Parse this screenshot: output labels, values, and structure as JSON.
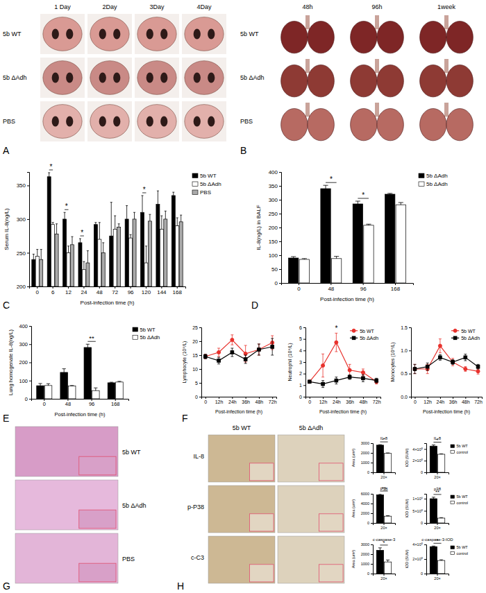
{
  "panel_labels": [
    "A",
    "B",
    "C",
    "D",
    "E",
    "F",
    "G",
    "H"
  ],
  "photo_panels": {
    "A": {
      "columns": [
        "1 Day",
        "2Day",
        "3Day",
        "4Day"
      ],
      "rows": [
        "5b WT",
        "5b ΔAdh",
        "PBS"
      ]
    },
    "B": {
      "columns": [
        "48h",
        "96h",
        "1week"
      ],
      "rows": [
        "5b WT",
        "5b ΔAdh",
        "PBS"
      ]
    },
    "G": {
      "rows": [
        "5b WT",
        "5b ΔAdh",
        "PBS"
      ]
    },
    "H": {
      "columns": [
        "5b WT",
        "5b ΔAdh"
      ],
      "rows": [
        "IL-8",
        "p-P38",
        "c-C3"
      ]
    }
  },
  "chart_data": [
    {
      "type": "bar",
      "y_label": "Serum IL-8(ng/L)",
      "x_label": "Post-infection time (h)",
      "categories": [
        "0",
        "6",
        "12",
        "24",
        "48",
        "72",
        "96",
        "120",
        "144",
        "168"
      ],
      "series": [
        {
          "name": "5b WT",
          "color": "#000000",
          "values": [
            240,
            363,
            300,
            265,
            292,
            275,
            300,
            310,
            322,
            335
          ],
          "errors": [
            8,
            6,
            10,
            6,
            3,
            50,
            20,
            25,
            20,
            5
          ]
        },
        {
          "name": "5b ΔAdh",
          "color": "#ffffff",
          "values": [
            245,
            292,
            250,
            225,
            270,
            285,
            272,
            235,
            285,
            290
          ],
          "errors": [
            10,
            3,
            10,
            12,
            25,
            20,
            5,
            25,
            20,
            12
          ]
        },
        {
          "name": "PBS",
          "color": "#aaaaaa",
          "values": [
            240,
            278,
            262,
            235,
            250,
            288,
            300,
            297,
            300,
            296
          ],
          "errors": [
            15,
            15,
            12,
            18,
            15,
            5,
            10,
            10,
            12,
            10
          ]
        }
      ],
      "ylim": [
        200,
        370
      ],
      "yticks": [
        200,
        250,
        300,
        350
      ],
      "legend": "right",
      "annotations": [
        {
          "text": "*",
          "category": 1
        },
        {
          "text": "*",
          "category": 2
        },
        {
          "text": "*",
          "category": 3
        },
        {
          "text": "*",
          "category": 7
        }
      ]
    },
    {
      "type": "bar",
      "y_label": "IL-8(ng/L) in BALF",
      "x_label": "Post-infection time (h)",
      "categories": [
        "0",
        "48",
        "96",
        "168"
      ],
      "series": [
        {
          "name": "5b ΔAdh",
          "color": "#000000",
          "values": [
            90,
            340,
            285,
            320
          ],
          "errors": [
            5,
            12,
            10,
            3
          ]
        },
        {
          "name": "5b ΔAdh",
          "color": "#ffffff",
          "values": [
            85,
            88,
            208,
            282
          ],
          "errors": [
            3,
            8,
            4,
            8
          ]
        }
      ],
      "ylim": [
        0,
        400
      ],
      "yticks": [
        0,
        50,
        100,
        150,
        200,
        250,
        300,
        350,
        400
      ],
      "legend": "right",
      "annotations": [
        {
          "text": "*",
          "category": 1
        },
        {
          "text": "*",
          "category": 2
        }
      ]
    },
    {
      "type": "bar",
      "y_label": "Lung homogenate IL-8(ng/L)",
      "x_label": "Post-infection time (h)",
      "categories": [
        "0",
        "48",
        "96",
        "168"
      ],
      "series": [
        {
          "name": "5b WT",
          "color": "#000000",
          "values": [
            72,
            145,
            282,
            88
          ],
          "errors": [
            12,
            20,
            18,
            3
          ]
        },
        {
          "name": "5b ΔAdh",
          "color": "#ffffff",
          "values": [
            73,
            70,
            45,
            92
          ],
          "errors": [
            10,
            3,
            15,
            4
          ]
        }
      ],
      "ylim": [
        0,
        400
      ],
      "yticks": [
        0,
        100,
        200,
        300,
        400
      ],
      "legend": "right",
      "annotations": [
        {
          "text": "**",
          "category": 2
        }
      ]
    },
    {
      "type": "line",
      "y_label": "Lymphocyte (10⁹/L)",
      "x_label": "Post-infection time (h)",
      "categories": [
        "0",
        "12h",
        "24h",
        "36h",
        "48h",
        "72h"
      ],
      "series": [
        {
          "color": "#e8322d",
          "marker": "circle",
          "values": [
            14.5,
            16,
            20.5,
            15.5,
            17,
            19.5
          ],
          "errors": [
            0.8,
            1.5,
            1.8,
            3,
            2,
            2.5
          ]
        },
        {
          "color": "#000000",
          "marker": "square",
          "values": [
            14.5,
            13,
            16,
            13.5,
            17,
            18
          ],
          "errors": [
            0.8,
            1.2,
            1.5,
            1.5,
            2,
            3
          ]
        }
      ],
      "ylim": [
        0,
        25
      ],
      "yticks": [
        0,
        5,
        10,
        15,
        20,
        25
      ]
    },
    {
      "type": "line",
      "y_label": "Neutrophil (10⁹/L)",
      "x_label": "Post-infection time (h)",
      "categories": [
        "0",
        "12h",
        "24h",
        "36h",
        "48h",
        "72h"
      ],
      "series": [
        {
          "name": "5b WT",
          "color": "#e8322d",
          "marker": "circle",
          "values": [
            1.3,
            2.7,
            4.7,
            2.3,
            2.1,
            1.3
          ],
          "errors": [
            0.1,
            1,
            0.8,
            0.5,
            0.3,
            0.2
          ]
        },
        {
          "name": "5b ΔAdh",
          "color": "#000000",
          "marker": "square",
          "values": [
            1.3,
            1.1,
            1.4,
            1.7,
            1.6,
            1.4
          ],
          "errors": [
            0.1,
            0.3,
            0.3,
            0.2,
            0.3,
            0.2
          ]
        }
      ],
      "ylim": [
        0,
        6
      ],
      "yticks": [
        0,
        1,
        2,
        3,
        4,
        5,
        6
      ],
      "legend": "upper right",
      "annotations": [
        {
          "text": "*",
          "category": 2
        }
      ]
    },
    {
      "type": "line",
      "y_label": "Monocytes (10⁹/L)",
      "x_label": "Post-infection time (h)",
      "categories": [
        "0",
        "12h",
        "24h",
        "36h",
        "48h",
        "72h"
      ],
      "series": [
        {
          "name": "5b WT",
          "color": "#e8322d",
          "marker": "circle",
          "values": [
            0.6,
            0.6,
            1.1,
            0.75,
            0.6,
            0.55
          ],
          "errors": [
            0.1,
            0.1,
            0.15,
            0.08,
            0.05,
            0.06
          ]
        },
        {
          "name": "5b ΔAdh",
          "color": "#000000",
          "marker": "square",
          "values": [
            0.6,
            0.65,
            0.85,
            0.75,
            0.85,
            0.65
          ],
          "errors": [
            0.1,
            0.08,
            0.06,
            0.05,
            0.07,
            0.05
          ]
        }
      ],
      "ylim": [
        0,
        1.5
      ],
      "yticks": [
        {
          "value": 0,
          "label": "0.0"
        },
        0.5,
        {
          "value": 1,
          "label": "1.0"
        },
        1.5
      ],
      "legend": "upper right"
    },
    {
      "type": "bar",
      "title": "IL-8",
      "y_label": "Area (um²)",
      "categories": [
        "20×"
      ],
      "series": [
        {
          "color": "#000000",
          "values": [
            2800
          ],
          "errors": [
            50
          ]
        },
        {
          "color": "#ffffff",
          "values": [
            1950
          ],
          "errors": [
            50
          ]
        }
      ],
      "ylim": [
        0,
        3000
      ],
      "yticks": [
        0,
        1000,
        2000,
        3000
      ],
      "annotations": [
        {
          "text": "*",
          "category": 0
        }
      ]
    },
    {
      "type": "bar",
      "title": "IL-8",
      "y_label": "IOD (SUM)",
      "categories": [
        "20×"
      ],
      "series": [
        {
          "name": "5b WT",
          "color": "#000000",
          "values": [
            450000
          ],
          "errors": [
            20000
          ]
        },
        {
          "name": "control",
          "color": "#ffffff",
          "values": [
            310000
          ],
          "errors": [
            8000
          ]
        }
      ],
      "ylim": [
        0,
        500000
      ],
      "yticks": [
        0,
        {
          "value": 200000,
          "label": "2×10⁵"
        },
        {
          "value": 400000,
          "label": "4×10⁵"
        }
      ],
      "legend": "right",
      "annotations": [
        {
          "text": "*",
          "category": 0
        }
      ]
    },
    {
      "type": "bar",
      "title": "P38",
      "y_label": "Area (um²)",
      "categories": [
        "20×"
      ],
      "series": [
        {
          "color": "#000000",
          "values": [
            5800
          ],
          "errors": [
            200
          ]
        },
        {
          "color": "#ffffff",
          "values": [
            1400
          ],
          "errors": [
            100
          ]
        }
      ],
      "ylim": [
        0,
        6000
      ],
      "yticks": [
        0,
        2000,
        4000,
        6000
      ],
      "annotations": [
        {
          "text": "**",
          "category": 0
        }
      ]
    },
    {
      "type": "bar",
      "title": "p38",
      "y_label": "IOD (SUM)",
      "categories": [
        "20×"
      ],
      "series": [
        {
          "name": "5b WT",
          "color": "#000000",
          "values": [
            1000000
          ],
          "errors": [
            60000
          ]
        },
        {
          "name": "control",
          "color": "#ffffff",
          "values": [
            200000
          ],
          "errors": [
            20000
          ]
        }
      ],
      "ylim": [
        0,
        1200000
      ],
      "yticks": [
        0,
        {
          "value": 500000,
          "label": "5×10⁵"
        },
        {
          "value": 1000000,
          "label": "1×10⁶"
        }
      ],
      "legend": "right",
      "annotations": [
        {
          "text": "**",
          "category": 0
        }
      ]
    },
    {
      "type": "bar",
      "title": "c-caspase-3",
      "y_label": "Area (um²)",
      "categories": [
        "20×"
      ],
      "series": [
        {
          "color": "#000000",
          "values": [
            2400
          ],
          "errors": [
            250
          ]
        },
        {
          "color": "#ffffff",
          "values": [
            1200
          ],
          "errors": [
            200
          ]
        }
      ],
      "ylim": [
        0,
        3000
      ],
      "yticks": [
        0,
        1000,
        2000,
        3000
      ],
      "annotations": [
        {
          "text": "*",
          "category": 0
        }
      ]
    },
    {
      "type": "bar",
      "title": "c-caspase-3-IOD",
      "y_label": "IOD (SUM)",
      "categories": [
        "20×"
      ],
      "series": [
        {
          "name": "5b WT",
          "color": "#000000",
          "values": [
            370000
          ],
          "errors": [
            8000
          ]
        },
        {
          "name": "control",
          "color": "#ffffff",
          "values": [
            180000
          ],
          "errors": [
            10000
          ]
        }
      ],
      "ylim": [
        0,
        400000
      ],
      "yticks": [
        0,
        {
          "value": 200000,
          "label": "2×10⁵"
        },
        {
          "value": 400000,
          "label": "4×10⁵"
        }
      ],
      "legend": "right",
      "annotations": [
        {
          "text": "*",
          "category": 0
        }
      ]
    }
  ]
}
